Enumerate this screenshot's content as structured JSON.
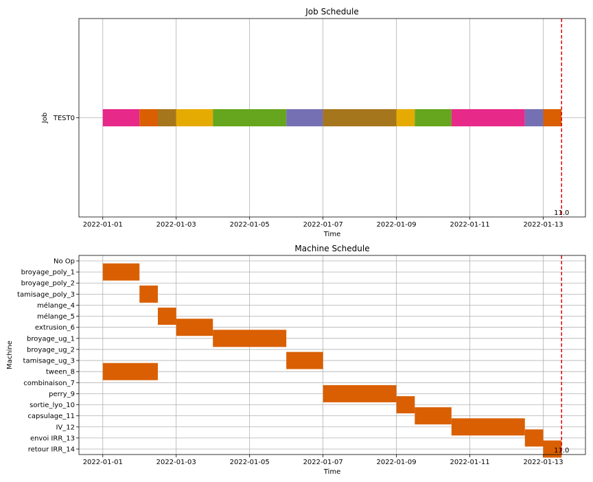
{
  "chart_data": [
    {
      "type": "gantt",
      "title": "Job Schedule",
      "xlabel": "Time",
      "ylabel": "Job",
      "xlim": [
        "2022-01-00.35",
        "2022-01-14.15"
      ],
      "x_origin_date": "2022-01-01",
      "x_ticks": [
        {
          "value": 0,
          "label": "2022-01-01"
        },
        {
          "value": 2,
          "label": "2022-01-03"
        },
        {
          "value": 4,
          "label": "2022-01-05"
        },
        {
          "value": 6,
          "label": "2022-01-07"
        },
        {
          "value": 8,
          "label": "2022-01-09"
        },
        {
          "value": 10,
          "label": "2022-01-11"
        },
        {
          "value": 12,
          "label": "2022-01-13"
        }
      ],
      "categories": [
        "TEST0"
      ],
      "grid": true,
      "marker_line": {
        "x": 12.5,
        "label": "11.0",
        "color": "#dd0000",
        "style": "dashed"
      },
      "tasks": [
        {
          "row": "TEST0",
          "start": 0.0,
          "end": 1.0,
          "color": "#e7298a"
        },
        {
          "row": "TEST0",
          "start": 1.0,
          "end": 1.5,
          "color": "#d95f02"
        },
        {
          "row": "TEST0",
          "start": 1.5,
          "end": 2.0,
          "color": "#a6761d"
        },
        {
          "row": "TEST0",
          "start": 2.0,
          "end": 3.0,
          "color": "#e6ab02"
        },
        {
          "row": "TEST0",
          "start": 3.0,
          "end": 5.0,
          "color": "#66a61e"
        },
        {
          "row": "TEST0",
          "start": 5.0,
          "end": 6.0,
          "color": "#7570b3"
        },
        {
          "row": "TEST0",
          "start": 6.0,
          "end": 8.0,
          "color": "#a6761d"
        },
        {
          "row": "TEST0",
          "start": 8.0,
          "end": 8.5,
          "color": "#e6ab02"
        },
        {
          "row": "TEST0",
          "start": 8.5,
          "end": 9.5,
          "color": "#66a61e"
        },
        {
          "row": "TEST0",
          "start": 9.5,
          "end": 11.5,
          "color": "#e7298a"
        },
        {
          "row": "TEST0",
          "start": 11.5,
          "end": 12.0,
          "color": "#7570b3"
        },
        {
          "row": "TEST0",
          "start": 12.0,
          "end": 12.5,
          "color": "#d95f02"
        }
      ]
    },
    {
      "type": "gantt",
      "title": "Machine Schedule",
      "xlabel": "Time",
      "ylabel": "Machine",
      "xlim": [
        "2022-01-00.35",
        "2022-01-14.15"
      ],
      "x_origin_date": "2022-01-01",
      "x_ticks": [
        {
          "value": 0,
          "label": "2022-01-01"
        },
        {
          "value": 2,
          "label": "2022-01-03"
        },
        {
          "value": 4,
          "label": "2022-01-05"
        },
        {
          "value": 6,
          "label": "2022-01-07"
        },
        {
          "value": 8,
          "label": "2022-01-09"
        },
        {
          "value": 10,
          "label": "2022-01-11"
        },
        {
          "value": 12,
          "label": "2022-01-13"
        }
      ],
      "categories": [
        "No Op",
        "broyage_poly_1",
        "broyage_poly_2",
        "tamisage_poly_3",
        "mélange_4",
        "mélange_5",
        "extrusion_6",
        "broyage_ug_1",
        "broyage_ug_2",
        "tamisage_ug_3",
        "tween_8",
        "combinaison_7",
        "perry_9",
        "sortie_lyo_10",
        "capsulage_11",
        "IV_12",
        "envoi IRR_13",
        "retour IRR_14"
      ],
      "grid": true,
      "marker_line": {
        "x": 12.5,
        "label": "11.0",
        "color": "#dd0000",
        "style": "dashed"
      },
      "bar_color": "#d95f02",
      "tasks": [
        {
          "row": "broyage_poly_1",
          "start": 0.0,
          "end": 1.0
        },
        {
          "row": "tamisage_poly_3",
          "start": 1.0,
          "end": 1.5
        },
        {
          "row": "mélange_5",
          "start": 1.5,
          "end": 2.0
        },
        {
          "row": "extrusion_6",
          "start": 2.0,
          "end": 3.0
        },
        {
          "row": "broyage_ug_1",
          "start": 3.0,
          "end": 5.0
        },
        {
          "row": "tamisage_ug_3",
          "start": 5.0,
          "end": 6.0
        },
        {
          "row": "tween_8",
          "start": 0.0,
          "end": 1.5
        },
        {
          "row": "perry_9",
          "start": 6.0,
          "end": 8.0
        },
        {
          "row": "sortie_lyo_10",
          "start": 8.0,
          "end": 8.5
        },
        {
          "row": "capsulage_11",
          "start": 8.5,
          "end": 9.5
        },
        {
          "row": "IV_12",
          "start": 9.5,
          "end": 11.5
        },
        {
          "row": "envoi IRR_13",
          "start": 11.5,
          "end": 12.0
        },
        {
          "row": "retour IRR_14",
          "start": 12.0,
          "end": 12.5
        }
      ]
    }
  ]
}
